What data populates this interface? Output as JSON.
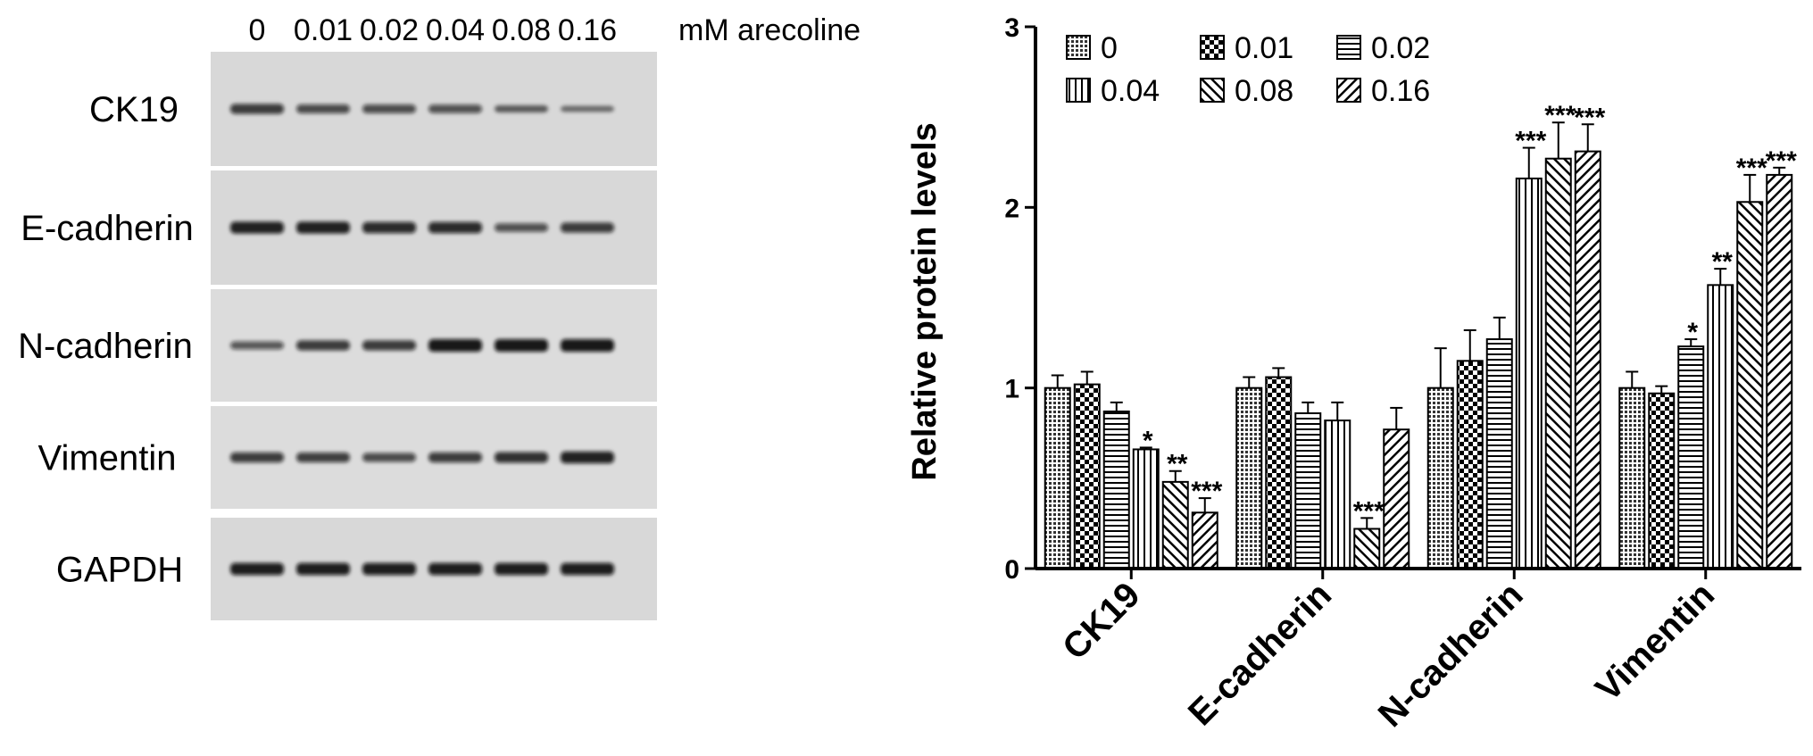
{
  "blot": {
    "lane_labels": [
      "0",
      "0.01",
      "0.02",
      "0.04",
      "0.08",
      "0.16"
    ],
    "treatment_label": "mM arecoline",
    "rows": [
      {
        "label": "CK19",
        "band_intensity": [
          0.72,
          0.6,
          0.58,
          0.55,
          0.4,
          0.28
        ]
      },
      {
        "label": "E-cadherin",
        "band_intensity": [
          0.92,
          0.92,
          0.85,
          0.85,
          0.55,
          0.72
        ]
      },
      {
        "label": "N-cadherin",
        "band_intensity": [
          0.5,
          0.72,
          0.72,
          1.0,
          1.0,
          1.0
        ]
      },
      {
        "label": "Vimentin",
        "band_intensity": [
          0.72,
          0.7,
          0.6,
          0.72,
          0.8,
          0.92
        ]
      },
      {
        "label": "GAPDH",
        "band_intensity": [
          0.95,
          0.95,
          0.95,
          0.95,
          0.95,
          0.95
        ]
      }
    ]
  },
  "chart_data": {
    "type": "bar",
    "ylabel": "Relative protein levels",
    "xlabel": "",
    "ylim": [
      0,
      3
    ],
    "yticks": [
      "0",
      "1",
      "2",
      "3"
    ],
    "categories": [
      "CK19",
      "E-cadherin",
      "N-cadherin",
      "Vimentin"
    ],
    "legend_position": "top",
    "series": [
      {
        "name": "0",
        "pattern": "dense-grid",
        "values": [
          1.0,
          1.0,
          1.0,
          1.0
        ],
        "errors": [
          0.07,
          0.06,
          0.22,
          0.09
        ],
        "stars": [
          "",
          "",
          "",
          ""
        ]
      },
      {
        "name": "0.01",
        "pattern": "checker",
        "values": [
          1.02,
          1.06,
          1.15,
          0.97
        ],
        "errors": [
          0.07,
          0.05,
          0.17,
          0.04
        ],
        "stars": [
          "",
          "",
          "",
          ""
        ]
      },
      {
        "name": "0.02",
        "pattern": "horizontal",
        "values": [
          0.87,
          0.86,
          1.27,
          1.23
        ],
        "errors": [
          0.05,
          0.06,
          0.12,
          0.04
        ],
        "stars": [
          "",
          "",
          "",
          "*"
        ]
      },
      {
        "name": "0.04",
        "pattern": "vertical",
        "values": [
          0.66,
          0.82,
          2.16,
          1.57
        ],
        "errors": [
          0.01,
          0.1,
          0.17,
          0.09
        ],
        "stars": [
          "*",
          "",
          "***",
          "**"
        ]
      },
      {
        "name": "0.08",
        "pattern": "diag-right",
        "values": [
          0.48,
          0.22,
          2.27,
          2.03
        ],
        "errors": [
          0.06,
          0.06,
          0.2,
          0.15
        ],
        "stars": [
          "**",
          "***",
          "***",
          "***"
        ]
      },
      {
        "name": "0.16",
        "pattern": "diag-left",
        "values": [
          0.31,
          0.77,
          2.31,
          2.18
        ],
        "errors": [
          0.08,
          0.12,
          0.15,
          0.04
        ],
        "stars": [
          "***",
          "",
          "***",
          "***"
        ]
      }
    ]
  }
}
